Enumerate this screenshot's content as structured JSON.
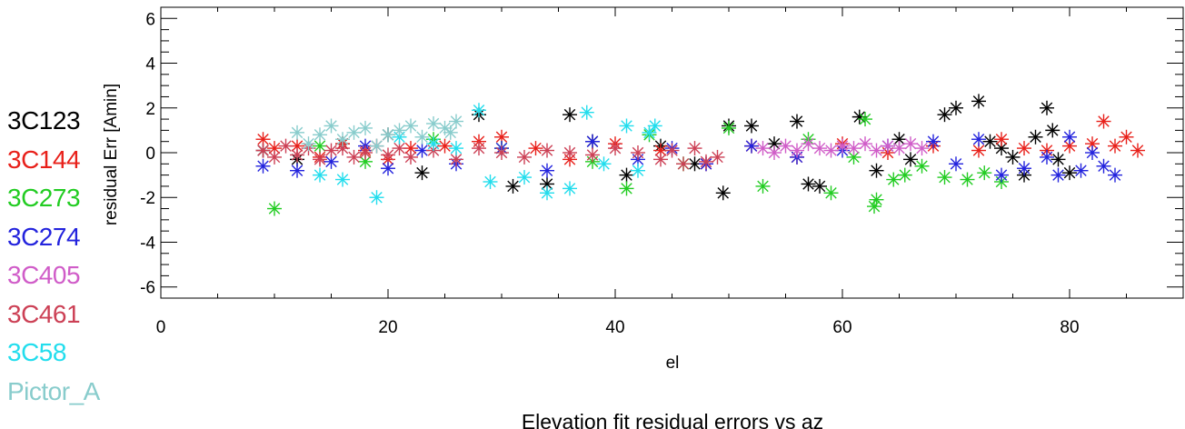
{
  "chart_data": {
    "type": "scatter",
    "title": "Elevation fit residual errors vs az",
    "xlabel": "el",
    "ylabel": "residual Err [Amin]",
    "xlim": [
      0,
      90
    ],
    "ylim": [
      -6.5,
      6.5
    ],
    "x_ticks": [
      0,
      20,
      40,
      60,
      80
    ],
    "y_ticks": [
      -6,
      -4,
      -2,
      0,
      2,
      4,
      6
    ],
    "marker": "asterisk",
    "legend_position": "left",
    "series": [
      {
        "name": "3C123",
        "color": "#000000",
        "x": [
          9,
          12,
          16,
          20,
          23,
          28,
          31,
          34,
          36,
          38,
          41,
          44,
          47,
          49.5,
          50,
          52,
          54,
          56,
          57,
          58,
          61.5,
          63,
          65,
          66,
          69,
          70,
          72,
          73,
          74,
          75,
          76,
          77,
          78,
          78.5,
          79,
          80
        ],
        "y": [
          0.1,
          -0.3,
          0.4,
          0.8,
          -0.9,
          1.7,
          -1.5,
          -1.4,
          1.7,
          0.5,
          -1.0,
          0.3,
          -0.5,
          -1.8,
          1.2,
          1.2,
          0.4,
          1.4,
          -1.4,
          -1.5,
          1.6,
          -0.8,
          0.6,
          -0.3,
          1.7,
          2.0,
          2.3,
          0.5,
          0.2,
          -0.2,
          -1.0,
          0.7,
          2.0,
          1.0,
          -0.3,
          -0.9
        ]
      },
      {
        "name": "3C144",
        "color": "#e8201a",
        "x": [
          9,
          10,
          12,
          14,
          16,
          18,
          20,
          22,
          25,
          28,
          30,
          33,
          36,
          40,
          44,
          48,
          52,
          56,
          60,
          64,
          68,
          72,
          74,
          76,
          78,
          80,
          82,
          83,
          84,
          85,
          86
        ],
        "y": [
          0.6,
          0.2,
          0.3,
          -0.2,
          0.4,
          0.1,
          -0.3,
          0.2,
          0.3,
          0.5,
          0.7,
          0.2,
          -0.3,
          0.4,
          0.1,
          -0.5,
          0.3,
          -0.2,
          0.4,
          0.0,
          0.3,
          0.1,
          0.6,
          0.2,
          0.1,
          0.3,
          0.4,
          1.4,
          0.3,
          0.7,
          0.1
        ]
      },
      {
        "name": "3C273",
        "color": "#22cc22",
        "x": [
          10,
          14,
          18,
          24,
          30,
          38,
          41,
          43,
          46,
          50,
          53,
          57,
          59,
          61,
          62,
          62.8,
          63,
          64.5,
          65.5,
          67,
          69,
          71,
          72.5,
          74
        ],
        "y": [
          -2.5,
          0.3,
          -0.4,
          0.6,
          0.2,
          -0.4,
          -1.6,
          0.8,
          -0.5,
          1.1,
          -1.5,
          0.6,
          -1.8,
          -0.2,
          1.5,
          -2.4,
          -2.1,
          -1.2,
          -1.0,
          -0.6,
          -1.1,
          -1.2,
          -0.9,
          -1.3
        ]
      },
      {
        "name": "3C274",
        "color": "#2323dd",
        "x": [
          9,
          12,
          15,
          18,
          20,
          23,
          26,
          30,
          34,
          38,
          42,
          45,
          48,
          52,
          56,
          60,
          64,
          68,
          70,
          72,
          74,
          76,
          78,
          79,
          80,
          81,
          82,
          83,
          84
        ],
        "y": [
          -0.6,
          -0.8,
          -0.4,
          0.3,
          -0.7,
          0.1,
          -0.5,
          0.2,
          -0.8,
          0.5,
          -0.3,
          0.2,
          -0.5,
          0.3,
          -0.2,
          0.1,
          0.3,
          0.5,
          -0.5,
          0.6,
          -1.0,
          -0.7,
          -0.2,
          -1.0,
          0.7,
          -0.8,
          0.0,
          -0.6,
          -1.0
        ]
      },
      {
        "name": "3C405",
        "color": "#d05cc8",
        "x": [
          53,
          54,
          55,
          56,
          57,
          58,
          59,
          60,
          61,
          62,
          63,
          64,
          65,
          66,
          67
        ],
        "y": [
          0.2,
          0.0,
          0.3,
          0.1,
          0.4,
          0.2,
          0.1,
          0.3,
          0.2,
          0.4,
          0.1,
          0.3,
          0.2,
          0.4,
          0.2
        ]
      },
      {
        "name": "3C461",
        "color": "#cc4055",
        "x": [
          9,
          10,
          11,
          12,
          13,
          14,
          15,
          16,
          17,
          18,
          19,
          20,
          21,
          22,
          24,
          26,
          28,
          30,
          32,
          34,
          36,
          38,
          40,
          42,
          44,
          45,
          46,
          47,
          48,
          49
        ],
        "y": [
          0.1,
          -0.2,
          0.3,
          -0.1,
          0.2,
          -0.3,
          0.1,
          0.2,
          -0.2,
          0.0,
          0.3,
          -0.1,
          0.2,
          -0.2,
          0.1,
          -0.3,
          0.2,
          0.0,
          -0.2,
          0.1,
          0.0,
          -0.1,
          0.2,
          0.0,
          -0.3,
          0.1,
          -0.5,
          0.2,
          -0.4,
          -0.2
        ]
      },
      {
        "name": "3C58",
        "color": "#22dded",
        "x": [
          14,
          16,
          19,
          21,
          24,
          26,
          28,
          29,
          32,
          34,
          36,
          37.5,
          39,
          41,
          42,
          43,
          43.5
        ],
        "y": [
          -1.0,
          -1.2,
          -2.0,
          0.7,
          0.4,
          0.2,
          1.9,
          -1.3,
          -1.1,
          -1.8,
          -1.6,
          1.8,
          -0.5,
          1.2,
          -0.8,
          0.9,
          1.2
        ]
      },
      {
        "name": "Pictor_A",
        "color": "#88cccc",
        "x": [
          12,
          13,
          14,
          15,
          16,
          17,
          18,
          19,
          20,
          21,
          22,
          23,
          24,
          25,
          25.5,
          26
        ],
        "y": [
          0.9,
          0.4,
          0.8,
          1.2,
          0.6,
          0.9,
          1.1,
          0.3,
          0.8,
          1.0,
          1.2,
          0.7,
          1.3,
          1.1,
          0.9,
          1.4
        ]
      }
    ]
  }
}
